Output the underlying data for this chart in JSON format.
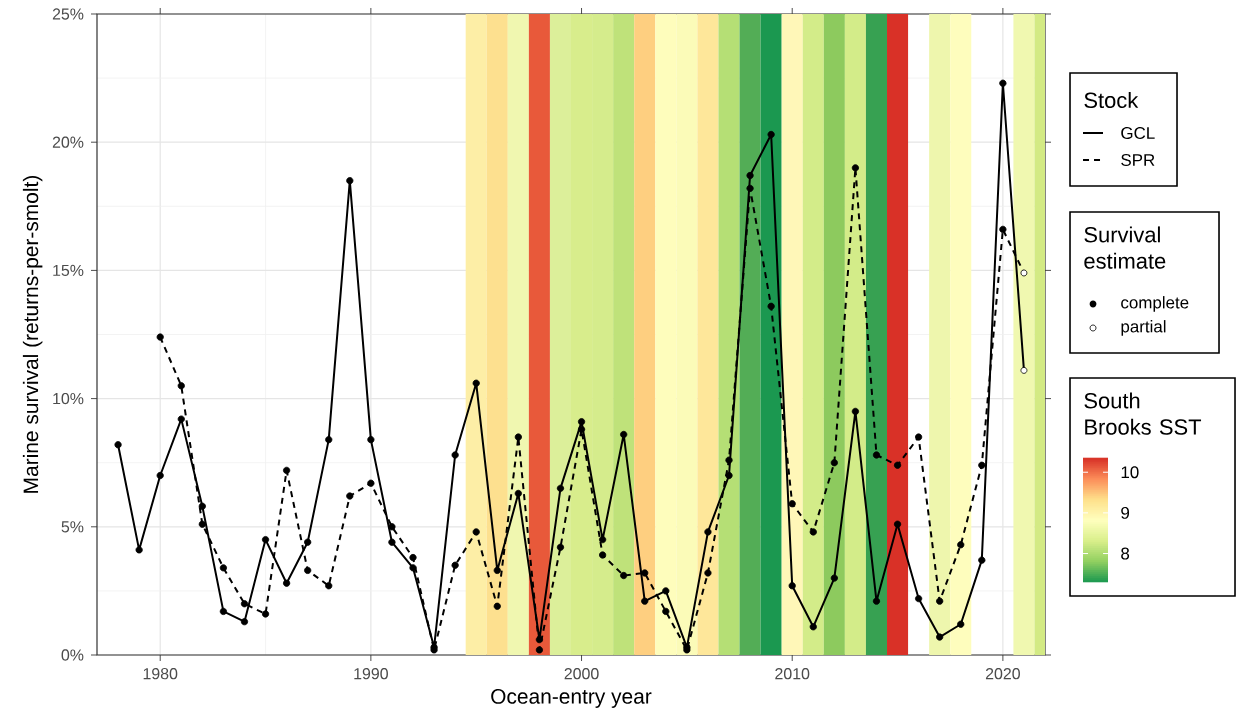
{
  "chart_data": {
    "type": "line",
    "xlabel": "Ocean-entry year",
    "ylabel": "Marine survival (returns-per-smolt)",
    "legend_title": "Stock",
    "clabel": "South Brooks SST",
    "annotations": [
      "Survival estimate"
    ],
    "xlim": [
      1977,
      2022
    ],
    "xticks": [
      1980,
      1990,
      2000,
      2010,
      2020
    ],
    "ylim": [
      0,
      25
    ],
    "yticks": [
      {
        "value": 0,
        "label": "0%"
      },
      {
        "value": 5,
        "label": "5%"
      },
      {
        "value": 10,
        "label": "10%"
      },
      {
        "value": 15,
        "label": "15%"
      },
      {
        "value": 20,
        "label": "20%"
      },
      {
        "value": 25,
        "label": "25%"
      }
    ],
    "clim": [
      7.3,
      10.35
    ],
    "cticks": [
      8,
      9,
      10
    ],
    "grid": true,
    "legend": "right",
    "series": [
      {
        "name": "GCL",
        "line_style": "solid",
        "color": "#000000",
        "x": [
          1978,
          1979,
          1980,
          1981,
          1982,
          1983,
          1984,
          1985,
          1986,
          1987,
          1988,
          1989,
          1990,
          1991,
          1992,
          1993,
          1994,
          1995,
          1996,
          1997,
          1998,
          1999,
          2000,
          2001,
          2002,
          2003,
          2004,
          2005,
          2006,
          2007,
          2008,
          2009,
          2010,
          2011,
          2012,
          2013,
          2014,
          2015,
          2016,
          2017,
          2018,
          2019,
          2020,
          2021
        ],
        "values": [
          8.2,
          4.1,
          7.0,
          9.2,
          5.8,
          1.7,
          1.3,
          4.5,
          2.8,
          4.4,
          8.4,
          18.5,
          8.4,
          4.4,
          3.4,
          0.3,
          7.8,
          10.6,
          3.3,
          6.3,
          0.6,
          6.5,
          9.1,
          4.5,
          8.6,
          2.1,
          2.5,
          0.3,
          4.8,
          7.0,
          18.7,
          20.3,
          2.7,
          1.1,
          3.0,
          9.5,
          2.1,
          5.1,
          2.2,
          0.7,
          1.2,
          3.7,
          22.3,
          11.1
        ]
      },
      {
        "name": "SPR",
        "line_style": "dashed",
        "color": "#000000",
        "x": [
          1980,
          1981,
          1982,
          1983,
          1984,
          1985,
          1986,
          1987,
          1988,
          1989,
          1990,
          1991,
          1992,
          1993,
          1994,
          1995,
          1996,
          1997,
          1998,
          1999,
          2000,
          2001,
          2002,
          2003,
          2004,
          2005,
          2006,
          2007,
          2008,
          2009,
          2010,
          2011,
          2012,
          2013,
          2014,
          2015,
          2016,
          2017,
          2018,
          2019,
          2020,
          2021
        ],
        "values": [
          12.4,
          10.5,
          5.1,
          3.4,
          2.0,
          1.6,
          7.2,
          3.3,
          2.7,
          6.2,
          6.7,
          5.0,
          3.8,
          0.2,
          3.5,
          4.8,
          1.9,
          8.5,
          0.2,
          4.2,
          8.8,
          3.9,
          3.1,
          3.2,
          1.7,
          0.2,
          3.2,
          7.6,
          18.2,
          13.6,
          5.9,
          4.8,
          7.5,
          19.0,
          7.8,
          7.4,
          8.5,
          2.1,
          4.3,
          7.4,
          16.6,
          14.9
        ]
      },
      {
        "name": "complete",
        "type": "scatter",
        "marker": "circle",
        "color": "#000000",
        "x": [
          1978,
          1979,
          1980,
          1981,
          1982,
          1983,
          1984,
          1985,
          1986,
          1987,
          1988,
          1989,
          1990,
          1991,
          1992,
          1993,
          1994,
          1995,
          1996,
          1997,
          1998,
          1999,
          2000,
          2001,
          2002,
          2003,
          2004,
          2005,
          2006,
          2007,
          2008,
          2009,
          2010,
          2011,
          2012,
          2013,
          2014,
          2015,
          2016,
          2017,
          2018,
          2019,
          2020,
          1980,
          1981,
          1982,
          1983,
          1984,
          1985,
          1986,
          1987,
          1988,
          1989,
          1990,
          1991,
          1992,
          1993,
          1994,
          1995,
          1996,
          1997,
          1998,
          1999,
          2000,
          2001,
          2002,
          2003,
          2004,
          2005,
          2006,
          2007,
          2008,
          2009,
          2010,
          2011,
          2012,
          2013,
          2014,
          2015,
          2016,
          2017,
          2018,
          2019,
          2020
        ],
        "values": [
          8.2,
          4.1,
          7.0,
          9.2,
          5.8,
          1.7,
          1.3,
          4.5,
          2.8,
          4.4,
          8.4,
          18.5,
          8.4,
          4.4,
          3.4,
          0.3,
          7.8,
          10.6,
          3.3,
          6.3,
          0.6,
          6.5,
          9.1,
          4.5,
          8.6,
          2.1,
          2.5,
          0.3,
          4.8,
          7.0,
          18.7,
          20.3,
          2.7,
          1.1,
          3.0,
          9.5,
          2.1,
          5.1,
          2.2,
          0.7,
          1.2,
          3.7,
          22.3,
          12.4,
          10.5,
          5.1,
          3.4,
          2.0,
          1.6,
          7.2,
          3.3,
          2.7,
          6.2,
          6.7,
          5.0,
          3.8,
          0.2,
          3.5,
          4.8,
          1.9,
          8.5,
          0.2,
          4.2,
          8.8,
          3.9,
          3.1,
          3.2,
          1.7,
          0.2,
          3.2,
          7.6,
          18.2,
          13.6,
          5.9,
          4.8,
          7.5,
          19.0,
          7.8,
          7.4,
          8.5,
          2.1,
          4.3,
          7.4,
          16.6
        ]
      },
      {
        "name": "partial",
        "type": "scatter",
        "marker": "open circle",
        "color": "#000000",
        "x": [
          2021,
          2021
        ],
        "values": [
          11.1,
          14.9
        ]
      }
    ],
    "bands": [
      {
        "axis": "x",
        "from": 1994.5,
        "to": 1995.5,
        "color": "#fdeea6"
      },
      {
        "axis": "x",
        "from": 1995.5,
        "to": 1996.5,
        "color": "#fde08f"
      },
      {
        "axis": "x",
        "from": 1996.5,
        "to": 1997.5,
        "color": "#f0f7b0"
      },
      {
        "axis": "x",
        "from": 1997.5,
        "to": 1998.5,
        "color": "#e8593a"
      },
      {
        "axis": "x",
        "from": 1998.5,
        "to": 1999.5,
        "color": "#dcef9a"
      },
      {
        "axis": "x",
        "from": 1999.5,
        "to": 2000.5,
        "color": "#d8ed8c"
      },
      {
        "axis": "x",
        "from": 2000.5,
        "to": 2001.5,
        "color": "#d5ec8c"
      },
      {
        "axis": "x",
        "from": 2001.5,
        "to": 2002.5,
        "color": "#bfe27a"
      },
      {
        "axis": "x",
        "from": 2002.5,
        "to": 2003.5,
        "color": "#fecf80"
      },
      {
        "axis": "x",
        "from": 2003.5,
        "to": 2004.5,
        "color": "#fefdbc"
      },
      {
        "axis": "x",
        "from": 2004.5,
        "to": 2005.5,
        "color": "#fbfbb8"
      },
      {
        "axis": "x",
        "from": 2005.5,
        "to": 2006.5,
        "color": "#fee79a"
      },
      {
        "axis": "x",
        "from": 2006.5,
        "to": 2007.5,
        "color": "#b5df75"
      },
      {
        "axis": "x",
        "from": 2007.5,
        "to": 2008.5,
        "color": "#53ad56"
      },
      {
        "axis": "x",
        "from": 2008.5,
        "to": 2009.5,
        "color": "#1b9850"
      },
      {
        "axis": "x",
        "from": 2009.5,
        "to": 2010.5,
        "color": "#fff7b8"
      },
      {
        "axis": "x",
        "from": 2010.5,
        "to": 2011.5,
        "color": "#d3ec89"
      },
      {
        "axis": "x",
        "from": 2011.5,
        "to": 2012.5,
        "color": "#8dca5e"
      },
      {
        "axis": "x",
        "from": 2012.5,
        "to": 2013.5,
        "color": "#d3ec89"
      },
      {
        "axis": "x",
        "from": 2013.5,
        "to": 2014.5,
        "color": "#37a152"
      },
      {
        "axis": "x",
        "from": 2014.5,
        "to": 2015.5,
        "color": "#d93127"
      },
      {
        "axis": "x",
        "from": 2016.5,
        "to": 2017.5,
        "color": "#eef6ad"
      },
      {
        "axis": "x",
        "from": 2017.5,
        "to": 2018.5,
        "color": "#fefdbd"
      },
      {
        "axis": "x",
        "from": 2020.5,
        "to": 2021.5,
        "color": "#f0f8b0"
      },
      {
        "axis": "x",
        "from": 2021.5,
        "to": 2022,
        "color": "#d3ea84"
      }
    ]
  }
}
